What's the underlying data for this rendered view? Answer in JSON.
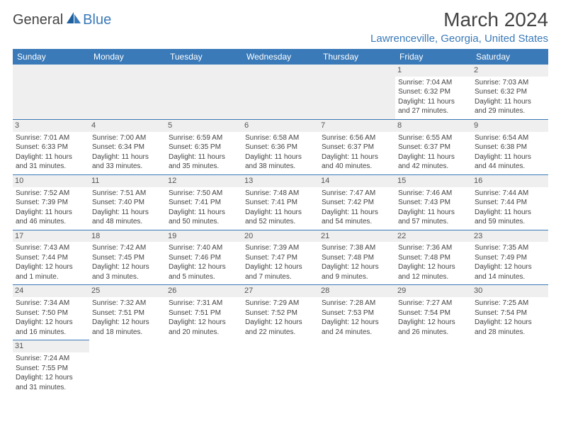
{
  "logo": {
    "word1": "General",
    "word2": "Blue"
  },
  "title": "March 2024",
  "location": "Lawrenceville, Georgia, United States",
  "colors": {
    "brand_blue": "#3a7ab8",
    "header_text": "#ffffff",
    "daynum_bg": "#efefef",
    "body_text": "#444444",
    "page_bg": "#ffffff"
  },
  "day_headers": [
    "Sunday",
    "Monday",
    "Tuesday",
    "Wednesday",
    "Thursday",
    "Friday",
    "Saturday"
  ],
  "weeks": [
    [
      null,
      null,
      null,
      null,
      null,
      {
        "n": "1",
        "sr": "Sunrise: 7:04 AM",
        "ss": "Sunset: 6:32 PM",
        "d1": "Daylight: 11 hours",
        "d2": "and 27 minutes."
      },
      {
        "n": "2",
        "sr": "Sunrise: 7:03 AM",
        "ss": "Sunset: 6:32 PM",
        "d1": "Daylight: 11 hours",
        "d2": "and 29 minutes."
      }
    ],
    [
      {
        "n": "3",
        "sr": "Sunrise: 7:01 AM",
        "ss": "Sunset: 6:33 PM",
        "d1": "Daylight: 11 hours",
        "d2": "and 31 minutes."
      },
      {
        "n": "4",
        "sr": "Sunrise: 7:00 AM",
        "ss": "Sunset: 6:34 PM",
        "d1": "Daylight: 11 hours",
        "d2": "and 33 minutes."
      },
      {
        "n": "5",
        "sr": "Sunrise: 6:59 AM",
        "ss": "Sunset: 6:35 PM",
        "d1": "Daylight: 11 hours",
        "d2": "and 35 minutes."
      },
      {
        "n": "6",
        "sr": "Sunrise: 6:58 AM",
        "ss": "Sunset: 6:36 PM",
        "d1": "Daylight: 11 hours",
        "d2": "and 38 minutes."
      },
      {
        "n": "7",
        "sr": "Sunrise: 6:56 AM",
        "ss": "Sunset: 6:37 PM",
        "d1": "Daylight: 11 hours",
        "d2": "and 40 minutes."
      },
      {
        "n": "8",
        "sr": "Sunrise: 6:55 AM",
        "ss": "Sunset: 6:37 PM",
        "d1": "Daylight: 11 hours",
        "d2": "and 42 minutes."
      },
      {
        "n": "9",
        "sr": "Sunrise: 6:54 AM",
        "ss": "Sunset: 6:38 PM",
        "d1": "Daylight: 11 hours",
        "d2": "and 44 minutes."
      }
    ],
    [
      {
        "n": "10",
        "sr": "Sunrise: 7:52 AM",
        "ss": "Sunset: 7:39 PM",
        "d1": "Daylight: 11 hours",
        "d2": "and 46 minutes."
      },
      {
        "n": "11",
        "sr": "Sunrise: 7:51 AM",
        "ss": "Sunset: 7:40 PM",
        "d1": "Daylight: 11 hours",
        "d2": "and 48 minutes."
      },
      {
        "n": "12",
        "sr": "Sunrise: 7:50 AM",
        "ss": "Sunset: 7:41 PM",
        "d1": "Daylight: 11 hours",
        "d2": "and 50 minutes."
      },
      {
        "n": "13",
        "sr": "Sunrise: 7:48 AM",
        "ss": "Sunset: 7:41 PM",
        "d1": "Daylight: 11 hours",
        "d2": "and 52 minutes."
      },
      {
        "n": "14",
        "sr": "Sunrise: 7:47 AM",
        "ss": "Sunset: 7:42 PM",
        "d1": "Daylight: 11 hours",
        "d2": "and 54 minutes."
      },
      {
        "n": "15",
        "sr": "Sunrise: 7:46 AM",
        "ss": "Sunset: 7:43 PM",
        "d1": "Daylight: 11 hours",
        "d2": "and 57 minutes."
      },
      {
        "n": "16",
        "sr": "Sunrise: 7:44 AM",
        "ss": "Sunset: 7:44 PM",
        "d1": "Daylight: 11 hours",
        "d2": "and 59 minutes."
      }
    ],
    [
      {
        "n": "17",
        "sr": "Sunrise: 7:43 AM",
        "ss": "Sunset: 7:44 PM",
        "d1": "Daylight: 12 hours",
        "d2": "and 1 minute."
      },
      {
        "n": "18",
        "sr": "Sunrise: 7:42 AM",
        "ss": "Sunset: 7:45 PM",
        "d1": "Daylight: 12 hours",
        "d2": "and 3 minutes."
      },
      {
        "n": "19",
        "sr": "Sunrise: 7:40 AM",
        "ss": "Sunset: 7:46 PM",
        "d1": "Daylight: 12 hours",
        "d2": "and 5 minutes."
      },
      {
        "n": "20",
        "sr": "Sunrise: 7:39 AM",
        "ss": "Sunset: 7:47 PM",
        "d1": "Daylight: 12 hours",
        "d2": "and 7 minutes."
      },
      {
        "n": "21",
        "sr": "Sunrise: 7:38 AM",
        "ss": "Sunset: 7:48 PM",
        "d1": "Daylight: 12 hours",
        "d2": "and 9 minutes."
      },
      {
        "n": "22",
        "sr": "Sunrise: 7:36 AM",
        "ss": "Sunset: 7:48 PM",
        "d1": "Daylight: 12 hours",
        "d2": "and 12 minutes."
      },
      {
        "n": "23",
        "sr": "Sunrise: 7:35 AM",
        "ss": "Sunset: 7:49 PM",
        "d1": "Daylight: 12 hours",
        "d2": "and 14 minutes."
      }
    ],
    [
      {
        "n": "24",
        "sr": "Sunrise: 7:34 AM",
        "ss": "Sunset: 7:50 PM",
        "d1": "Daylight: 12 hours",
        "d2": "and 16 minutes."
      },
      {
        "n": "25",
        "sr": "Sunrise: 7:32 AM",
        "ss": "Sunset: 7:51 PM",
        "d1": "Daylight: 12 hours",
        "d2": "and 18 minutes."
      },
      {
        "n": "26",
        "sr": "Sunrise: 7:31 AM",
        "ss": "Sunset: 7:51 PM",
        "d1": "Daylight: 12 hours",
        "d2": "and 20 minutes."
      },
      {
        "n": "27",
        "sr": "Sunrise: 7:29 AM",
        "ss": "Sunset: 7:52 PM",
        "d1": "Daylight: 12 hours",
        "d2": "and 22 minutes."
      },
      {
        "n": "28",
        "sr": "Sunrise: 7:28 AM",
        "ss": "Sunset: 7:53 PM",
        "d1": "Daylight: 12 hours",
        "d2": "and 24 minutes."
      },
      {
        "n": "29",
        "sr": "Sunrise: 7:27 AM",
        "ss": "Sunset: 7:54 PM",
        "d1": "Daylight: 12 hours",
        "d2": "and 26 minutes."
      },
      {
        "n": "30",
        "sr": "Sunrise: 7:25 AM",
        "ss": "Sunset: 7:54 PM",
        "d1": "Daylight: 12 hours",
        "d2": "and 28 minutes."
      }
    ],
    [
      {
        "n": "31",
        "sr": "Sunrise: 7:24 AM",
        "ss": "Sunset: 7:55 PM",
        "d1": "Daylight: 12 hours",
        "d2": "and 31 minutes."
      },
      null,
      null,
      null,
      null,
      null,
      null
    ]
  ]
}
